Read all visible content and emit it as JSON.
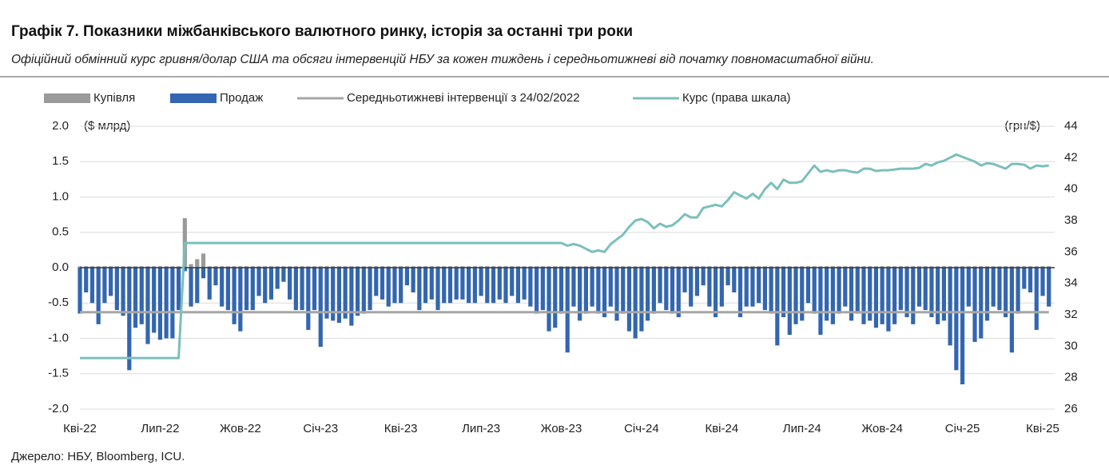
{
  "chart_data": {
    "type": "bar",
    "title": "Графік 7. Показники міжбанківського валютного ринку, історія за останні три роки",
    "subtitle": "Офіційний обмінний курс гривня/долар США та обсяги інтервенцій НБУ за кожен тиждень і середньотижневі від початку повномасштабної війни.",
    "source": "Джерело: НБУ, Bloomberg, ICU.",
    "y_label": "($ млрд)",
    "y2_label": "(грн/$)",
    "ylim": [
      -2,
      2
    ],
    "yticks": [
      {
        "value": 2,
        "label": "2.0"
      },
      1.5,
      {
        "value": 1,
        "label": "1.0"
      },
      0.5,
      {
        "value": 0,
        "label": "0.0"
      },
      -0.5,
      {
        "value": -1,
        "label": "-1.0"
      },
      -1.5,
      {
        "value": -2,
        "label": "-2.0"
      }
    ],
    "y2lim": [
      26,
      44
    ],
    "y2ticks": [
      44,
      42,
      40,
      38,
      36,
      34,
      32,
      30,
      28,
      26
    ],
    "grid": true,
    "legend": "top",
    "categories": [
      "Кві-22",
      null,
      null,
      null,
      null,
      null,
      null,
      null,
      null,
      null,
      null,
      null,
      null,
      "Лип-22",
      null,
      null,
      null,
      null,
      null,
      null,
      null,
      null,
      null,
      null,
      null,
      null,
      "Жов-22",
      null,
      null,
      null,
      null,
      null,
      null,
      null,
      null,
      null,
      null,
      null,
      null,
      "Січ-23",
      null,
      null,
      null,
      null,
      null,
      null,
      null,
      null,
      null,
      null,
      null,
      null,
      "Кві-23",
      null,
      null,
      null,
      null,
      null,
      null,
      null,
      null,
      null,
      null,
      null,
      null,
      "Лип-23",
      null,
      null,
      null,
      null,
      null,
      null,
      null,
      null,
      null,
      null,
      null,
      null,
      "Жов-23",
      null,
      null,
      null,
      null,
      null,
      null,
      null,
      null,
      null,
      null,
      null,
      null,
      "Січ-24",
      null,
      null,
      null,
      null,
      null,
      null,
      null,
      null,
      null,
      null,
      null,
      null,
      "Кві-24",
      null,
      null,
      null,
      null,
      null,
      null,
      null,
      null,
      null,
      null,
      null,
      null,
      "Лип-24",
      null,
      null,
      null,
      null,
      null,
      null,
      null,
      null,
      null,
      null,
      null,
      null,
      "Жов-24",
      null,
      null,
      null,
      null,
      null,
      null,
      null,
      null,
      null,
      null,
      null,
      null,
      "Січ-25",
      null,
      null,
      null,
      null,
      null,
      null,
      null,
      null,
      null,
      null,
      null,
      null,
      "Кві-25",
      null
    ],
    "series": [
      {
        "name": "Купівля",
        "type": "bar",
        "color": "#9a9a9a",
        "values": [
          0.02,
          0.02,
          0.02,
          0.02,
          0.02,
          0.02,
          0.02,
          0.02,
          0.02,
          0.02,
          0.02,
          0.02,
          0.02,
          0.02,
          0.02,
          0.02,
          0.02,
          0.7,
          0.05,
          0.12,
          0.2,
          0.02,
          0.02,
          0.02,
          0.02,
          0.02,
          0.02,
          0.02,
          0.02,
          0.02,
          0.02,
          0.02,
          0.02,
          0.02,
          0.02,
          0.02,
          0.02,
          0.02,
          0.02,
          0.02,
          0.02,
          0.02,
          0.02,
          0.02,
          0.02,
          0.02,
          0.02,
          0.02,
          0.02,
          0.02,
          0.02,
          0.02,
          0.02,
          0.02,
          0.02,
          0.02,
          0.02,
          0.02,
          0.02,
          0.02,
          0.02,
          0.02,
          0.02,
          0.02,
          0.02,
          0.02,
          0.02,
          0.02,
          0.02,
          0.02,
          0.02,
          0.02,
          0.02,
          0.02,
          0.02,
          0.02,
          0.02,
          0.02,
          0.02,
          0.02,
          0.02,
          0.02,
          0.02,
          0.02,
          0.02,
          0.02,
          0.02,
          0.02,
          0.02,
          0.02,
          0.02,
          0.02,
          0.02,
          0.02,
          0.02,
          0.02,
          0.02,
          0.02,
          0.02,
          0.02,
          0.02,
          0.02,
          0.02,
          0.02,
          0.02,
          0.02,
          0.02,
          0.02,
          0.02,
          0.02,
          0.02,
          0.02,
          0.02,
          0.02,
          0.02,
          0.02,
          0.02,
          0.02,
          0.02,
          0.02,
          0.02,
          0.02,
          0.02,
          0.02,
          0.02,
          0.02,
          0.02,
          0.02,
          0.02,
          0.02,
          0.02,
          0.02,
          0.02,
          0.02,
          0.02,
          0.02,
          0.02,
          0.02,
          0.02,
          0.02,
          0.02,
          0.02,
          0.02,
          0.02,
          0.02,
          0.02,
          0.02,
          0.02,
          0.02,
          0.02,
          0.02,
          0.02,
          0.02,
          0.02,
          0.02,
          0.02,
          0.02,
          0.02
        ]
      },
      {
        "name": "Продаж",
        "type": "bar",
        "color": "#3366b0",
        "values": [
          -0.65,
          -0.35,
          -0.5,
          -0.8,
          -0.5,
          -0.4,
          -0.6,
          -0.68,
          -1.45,
          -0.85,
          -0.8,
          -1.08,
          -0.92,
          -1.02,
          -1.0,
          -1.0,
          -0.6,
          -0.05,
          -0.55,
          -0.5,
          -0.15,
          -0.45,
          -0.25,
          -0.55,
          -0.6,
          -0.8,
          -0.9,
          -0.6,
          -0.6,
          -0.4,
          -0.5,
          -0.45,
          -0.3,
          -0.2,
          -0.45,
          -0.6,
          -0.6,
          -0.88,
          -0.6,
          -1.12,
          -0.72,
          -0.75,
          -0.78,
          -0.72,
          -0.82,
          -0.68,
          -0.65,
          -0.6,
          -0.4,
          -0.45,
          -0.55,
          -0.5,
          -0.5,
          -0.25,
          -0.35,
          -0.6,
          -0.5,
          -0.45,
          -0.6,
          -0.5,
          -0.5,
          -0.45,
          -0.45,
          -0.5,
          -0.5,
          -0.4,
          -0.5,
          -0.5,
          -0.45,
          -0.5,
          -0.4,
          -0.5,
          -0.45,
          -0.55,
          -0.65,
          -0.6,
          -0.9,
          -0.85,
          -0.65,
          -1.2,
          -0.55,
          -0.75,
          -0.65,
          -0.55,
          -0.65,
          -0.7,
          -0.55,
          -0.75,
          -0.65,
          -0.9,
          -1.0,
          -0.9,
          -0.75,
          -0.65,
          -0.5,
          -0.6,
          -0.65,
          -0.7,
          -0.35,
          -0.55,
          -0.4,
          -0.25,
          -0.55,
          -0.7,
          -0.55,
          -0.25,
          -0.35,
          -0.7,
          -0.55,
          -0.55,
          -0.5,
          -0.6,
          -0.65,
          -1.1,
          -0.7,
          -0.95,
          -0.8,
          -0.75,
          -0.5,
          -0.65,
          -0.95,
          -0.75,
          -0.8,
          -0.65,
          -0.55,
          -0.75,
          -0.65,
          -0.8,
          -0.75,
          -0.85,
          -0.8,
          -0.9,
          -0.8,
          -0.6,
          -0.7,
          -0.8,
          -0.55,
          -0.6,
          -0.7,
          -0.8,
          -0.75,
          -1.1,
          -1.45,
          -1.65,
          -0.55,
          -1.05,
          -1.0,
          -0.75,
          -0.55,
          -0.6,
          -0.7,
          -1.2,
          -0.65,
          -0.3,
          -0.35,
          -0.88,
          -0.4,
          -0.55
        ]
      },
      {
        "name": "Середньотижневі інтервенції з 24/02/2022",
        "type": "line",
        "color": "#a6a6a6",
        "values": [
          -0.63,
          -0.63,
          -0.63,
          -0.63,
          -0.63,
          -0.63,
          -0.63,
          -0.63,
          -0.63,
          -0.63,
          -0.63,
          -0.63,
          -0.63,
          -0.63,
          -0.63,
          -0.63,
          -0.63,
          -0.63,
          -0.63,
          -0.63,
          -0.63,
          -0.63,
          -0.63,
          -0.63,
          -0.63,
          -0.63,
          -0.63,
          -0.63,
          -0.63,
          -0.63,
          -0.63,
          -0.63,
          -0.63,
          -0.63,
          -0.63,
          -0.63,
          -0.63,
          -0.63,
          -0.63,
          -0.63,
          -0.63,
          -0.63,
          -0.63,
          -0.63,
          -0.63,
          -0.63,
          -0.63,
          -0.63,
          -0.63,
          -0.63,
          -0.63,
          -0.63,
          -0.63,
          -0.63,
          -0.63,
          -0.63,
          -0.63,
          -0.63,
          -0.63,
          -0.63,
          -0.63,
          -0.63,
          -0.63,
          -0.63,
          -0.63,
          -0.63,
          -0.63,
          -0.63,
          -0.63,
          -0.63,
          -0.63,
          -0.63,
          -0.63,
          -0.63,
          -0.63,
          -0.63,
          -0.63,
          -0.63,
          -0.63,
          -0.63,
          -0.63,
          -0.63,
          -0.63,
          -0.63,
          -0.63,
          -0.63,
          -0.63,
          -0.63,
          -0.63,
          -0.63,
          -0.63,
          -0.63,
          -0.63,
          -0.63,
          -0.63,
          -0.63,
          -0.63,
          -0.63,
          -0.63,
          -0.63,
          -0.63,
          -0.63,
          -0.63,
          -0.63,
          -0.63,
          -0.63,
          -0.63,
          -0.63,
          -0.63,
          -0.63,
          -0.63,
          -0.63,
          -0.63,
          -0.63,
          -0.63,
          -0.63,
          -0.63,
          -0.63,
          -0.63,
          -0.63,
          -0.63,
          -0.63,
          -0.63,
          -0.63,
          -0.63,
          -0.63,
          -0.63,
          -0.63,
          -0.63,
          -0.63,
          -0.63,
          -0.63,
          -0.63,
          -0.63,
          -0.63,
          -0.63,
          -0.63,
          -0.63,
          -0.63,
          -0.63,
          -0.63,
          -0.63,
          -0.63,
          -0.63,
          -0.63,
          -0.63,
          -0.63,
          -0.63,
          -0.63,
          -0.63,
          -0.63,
          -0.63,
          -0.63,
          -0.63,
          -0.63,
          -0.63,
          -0.63,
          -0.63
        ]
      },
      {
        "name": "Курс (права шкала)",
        "type": "line",
        "axis": "y2",
        "color": "#7bbfbc",
        "values": [
          29.25,
          29.25,
          29.25,
          29.25,
          29.25,
          29.25,
          29.25,
          29.25,
          29.25,
          29.25,
          29.25,
          29.25,
          29.25,
          29.25,
          29.25,
          29.25,
          29.25,
          36.57,
          36.57,
          36.57,
          36.57,
          36.57,
          36.57,
          36.57,
          36.57,
          36.57,
          36.57,
          36.57,
          36.57,
          36.57,
          36.57,
          36.57,
          36.57,
          36.57,
          36.57,
          36.57,
          36.57,
          36.57,
          36.57,
          36.57,
          36.57,
          36.57,
          36.57,
          36.57,
          36.57,
          36.57,
          36.57,
          36.57,
          36.57,
          36.57,
          36.57,
          36.57,
          36.57,
          36.57,
          36.57,
          36.57,
          36.57,
          36.57,
          36.57,
          36.57,
          36.57,
          36.57,
          36.57,
          36.57,
          36.57,
          36.57,
          36.57,
          36.57,
          36.57,
          36.57,
          36.57,
          36.57,
          36.57,
          36.57,
          36.57,
          36.57,
          36.57,
          36.57,
          36.57,
          36.4,
          36.5,
          36.4,
          36.2,
          36.0,
          36.1,
          36.0,
          36.5,
          36.8,
          37.1,
          37.6,
          38.0,
          38.1,
          37.9,
          37.5,
          37.8,
          37.6,
          37.7,
          38.0,
          38.4,
          38.2,
          38.2,
          38.8,
          38.9,
          39.0,
          38.9,
          39.3,
          39.8,
          39.6,
          39.4,
          39.7,
          39.4,
          40.0,
          40.4,
          40.0,
          40.6,
          40.4,
          40.4,
          40.5,
          41.0,
          41.5,
          41.1,
          41.2,
          41.1,
          41.2,
          41.2,
          41.1,
          41.05,
          41.3,
          41.3,
          41.15,
          41.2,
          41.2,
          41.25,
          41.3,
          41.3,
          41.3,
          41.35,
          41.6,
          41.5,
          41.7,
          41.8,
          42.0,
          42.2,
          42.05,
          41.9,
          41.75,
          41.5,
          41.65,
          41.6,
          41.45,
          41.3,
          41.6,
          41.6,
          41.55,
          41.3,
          41.5,
          41.45,
          41.5
        ]
      }
    ]
  }
}
